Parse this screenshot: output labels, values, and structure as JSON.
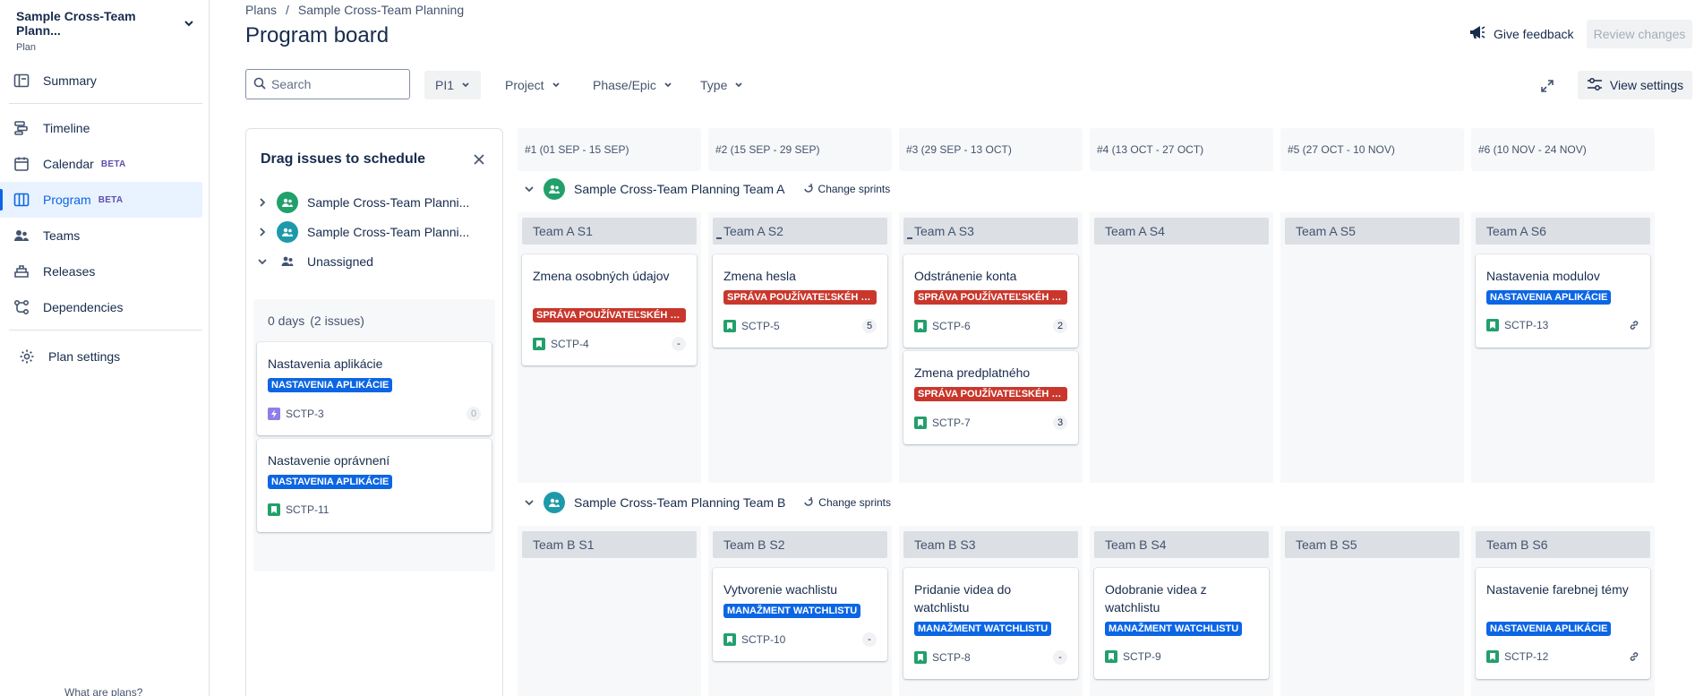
{
  "sidebar": {
    "project_title": "Sample Cross-Team Plann...",
    "project_subtitle": "Plan",
    "items": [
      {
        "label": "Summary",
        "icon": "summary-icon"
      },
      {
        "label": "Timeline",
        "icon": "timeline-icon"
      },
      {
        "label": "Calendar",
        "icon": "calendar-icon",
        "badge": "BETA"
      },
      {
        "label": "Program",
        "icon": "program-board-icon",
        "badge": "BETA",
        "active": true
      },
      {
        "label": "Teams",
        "icon": "teams-icon"
      },
      {
        "label": "Releases",
        "icon": "releases-icon"
      },
      {
        "label": "Dependencies",
        "icon": "dependencies-icon"
      }
    ],
    "settings_label": "Plan settings",
    "footer_link": "What are plans?"
  },
  "header": {
    "breadcrumb": [
      "Plans",
      "Sample Cross-Team Planning"
    ],
    "title": "Program board",
    "feedback_label": "Give feedback",
    "review_label": "Review changes"
  },
  "toolbar": {
    "search_placeholder": "Search",
    "filters": [
      "PI1",
      "Project",
      "Phase/Epic",
      "Type"
    ],
    "view_settings_label": "View settings"
  },
  "drag_panel": {
    "title": "Drag issues to schedule",
    "rows": [
      "Sample Cross-Team Planni...",
      "Sample Cross-Team Planni...",
      "Unassigned"
    ],
    "days_label": "0 days",
    "issues_count": "(2 issues)",
    "cards": [
      {
        "title": "Nastavenia aplikácie",
        "lozenge": "NASTAVENIA APLIKÁCIE",
        "key": "SCTP-3",
        "count": "0"
      },
      {
        "title": "Nastavenie oprávnení",
        "lozenge": "NASTAVENIA APLIKÁCIE",
        "key": "SCTP-11"
      }
    ]
  },
  "iterations": [
    "#1 (01 SEP - 15 SEP)",
    "#2 (15 SEP - 29 SEP)",
    "#3 (29 SEP - 13 OCT)",
    "#4 (13 OCT - 27 OCT)",
    "#5 (27 OCT - 10 NOV)",
    "#6 (10 NOV - 24 NOV)"
  ],
  "teams": [
    {
      "name": "Sample Cross-Team Planning Team A",
      "change_label": "Change sprints",
      "sprints": [
        "Team A S1",
        "Team A S2",
        "Team A S3",
        "Team A S4",
        "Team A S5",
        "Team A S6"
      ],
      "cards": [
        {
          "title": "Zmena osobných údajov",
          "lozenge": "SPRÁVA POUŽÍVATEĽSKÉH KO...",
          "key": "SCTP-4",
          "count": "-"
        },
        {
          "title": "Zmena hesla",
          "lozenge": "SPRÁVA POUŽÍVATEĽSKÉH KO...",
          "key": "SCTP-5",
          "count": "5"
        },
        {
          "title": "Odstránenie konta",
          "lozenge": "SPRÁVA POUŽÍVATEĽSKÉH KO...",
          "key": "SCTP-6",
          "count": "2"
        },
        {
          "title": "Zmena predplatného",
          "lozenge": "SPRÁVA POUŽÍVATEĽSKÉH KO...",
          "key": "SCTP-7",
          "count": "3"
        },
        {
          "title": "Nastavenia modulov",
          "lozenge": "NASTAVENIA APLIKÁCIE",
          "key": "SCTP-13"
        }
      ]
    },
    {
      "name": "Sample Cross-Team Planning Team B",
      "change_label": "Change sprints",
      "sprints": [
        "Team B S1",
        "Team B S2",
        "Team B S3",
        "Team B S4",
        "Team B S5",
        "Team B S6"
      ],
      "cards": [
        {
          "title": "Vytvorenie wachlistu",
          "lozenge": "MANAŽMENT WATCHLISTU",
          "key": "SCTP-10",
          "count": "-"
        },
        {
          "title": "Pridanie videa do watchlistu",
          "lozenge": "MANAŽMENT WATCHLISTU",
          "key": "SCTP-8",
          "count": "-"
        },
        {
          "title": "Odobranie videa z watchlistu",
          "lozenge": "MANAŽMENT WATCHLISTU",
          "key": "SCTP-9"
        },
        {
          "title": "Nastavenie farebnej témy",
          "lozenge": "NASTAVENIA APLIKÁCIE",
          "key": "SCTP-12"
        }
      ]
    }
  ],
  "colors": {
    "accent": "#0c66e4",
    "team_a": "#22a06b",
    "team_b": "#1d9aaa",
    "lozenge_red": "#c9372c",
    "lozenge_blue": "#0c66e4"
  }
}
